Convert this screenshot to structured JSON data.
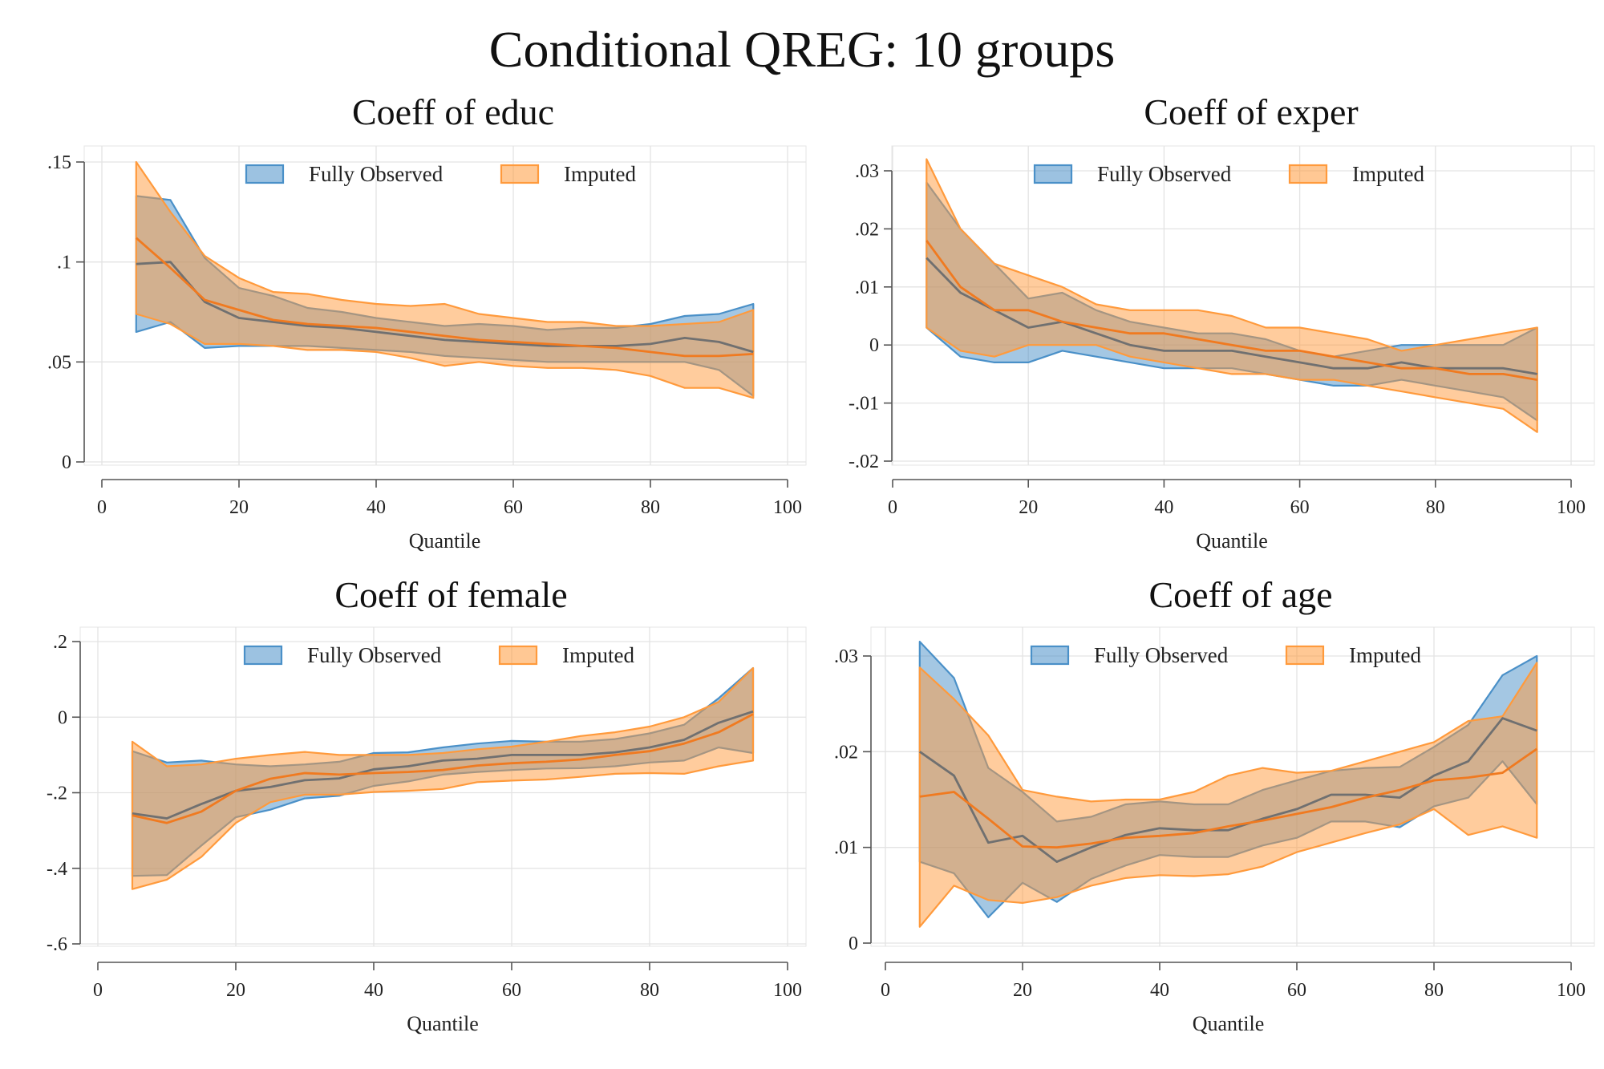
{
  "title": "Conditional QREG: 10 groups",
  "colors": {
    "observed": "#4a90c8",
    "imputed": "#ff9a3c",
    "observed_line": "#707070",
    "imputed_line": "#f07a20"
  },
  "chart_data": [
    {
      "type": "area",
      "title": "Coeff of educ",
      "xlabel": "Quantile",
      "xlim": [
        0,
        100
      ],
      "ylim": [
        0,
        0.15
      ],
      "xticks": [
        0,
        20,
        40,
        60,
        80,
        100
      ],
      "xtick_labels": [
        "0",
        "20",
        "40",
        "60",
        "80",
        "100"
      ],
      "yticks": [
        0,
        0.05,
        0.1,
        0.15
      ],
      "ytick_labels": [
        "0",
        ".05",
        ".1",
        ".15"
      ],
      "legend": [
        "Fully Observed",
        "Imputed"
      ],
      "legend_position": "top-center",
      "grid": true,
      "x": [
        5,
        10,
        15,
        20,
        25,
        30,
        35,
        40,
        45,
        50,
        55,
        60,
        65,
        70,
        75,
        80,
        85,
        90,
        95
      ],
      "series": [
        {
          "name": "Fully Observed",
          "estimate": [
            0.099,
            0.1,
            0.08,
            0.072,
            0.07,
            0.068,
            0.067,
            0.065,
            0.063,
            0.061,
            0.06,
            0.059,
            0.058,
            0.058,
            0.058,
            0.059,
            0.062,
            0.06,
            0.055
          ],
          "upper": [
            0.133,
            0.131,
            0.102,
            0.087,
            0.083,
            0.077,
            0.075,
            0.072,
            0.07,
            0.068,
            0.069,
            0.068,
            0.066,
            0.067,
            0.067,
            0.069,
            0.073,
            0.074,
            0.079
          ],
          "lower": [
            0.065,
            0.07,
            0.057,
            0.058,
            0.058,
            0.058,
            0.057,
            0.056,
            0.055,
            0.053,
            0.052,
            0.051,
            0.05,
            0.05,
            0.05,
            0.05,
            0.05,
            0.046,
            0.033
          ]
        },
        {
          "name": "Imputed",
          "estimate": [
            0.112,
            0.097,
            0.081,
            0.076,
            0.071,
            0.069,
            0.068,
            0.067,
            0.065,
            0.063,
            0.061,
            0.06,
            0.059,
            0.058,
            0.057,
            0.055,
            0.053,
            0.053,
            0.054
          ],
          "upper": [
            0.15,
            0.125,
            0.103,
            0.092,
            0.085,
            0.084,
            0.081,
            0.079,
            0.078,
            0.079,
            0.074,
            0.072,
            0.07,
            0.07,
            0.068,
            0.068,
            0.069,
            0.07,
            0.076
          ],
          "lower": [
            0.074,
            0.069,
            0.059,
            0.059,
            0.058,
            0.056,
            0.056,
            0.055,
            0.052,
            0.048,
            0.05,
            0.048,
            0.047,
            0.047,
            0.046,
            0.043,
            0.037,
            0.037,
            0.032
          ]
        }
      ]
    },
    {
      "type": "area",
      "title": "Coeff of exper",
      "xlabel": "Quantile",
      "xlim": [
        0,
        100
      ],
      "ylim": [
        -0.02,
        0.03
      ],
      "xticks": [
        0,
        20,
        40,
        60,
        80,
        100
      ],
      "xtick_labels": [
        "0",
        "20",
        "40",
        "60",
        "80",
        "100"
      ],
      "yticks": [
        -0.02,
        -0.01,
        0,
        0.01,
        0.02,
        0.03
      ],
      "ytick_labels": [
        "-.02",
        "-.01",
        "0",
        ".01",
        ".02",
        ".03"
      ],
      "legend": [
        "Fully Observed",
        "Imputed"
      ],
      "legend_position": "top-center",
      "grid": true,
      "x": [
        5,
        10,
        15,
        20,
        25,
        30,
        35,
        40,
        45,
        50,
        55,
        60,
        65,
        70,
        75,
        80,
        85,
        90,
        95
      ],
      "series": [
        {
          "name": "Fully Observed",
          "estimate": [
            0.015,
            0.009,
            0.006,
            0.003,
            0.004,
            0.002,
            0.0,
            -0.001,
            -0.001,
            -0.001,
            -0.002,
            -0.003,
            -0.004,
            -0.004,
            -0.003,
            -0.004,
            -0.004,
            -0.004,
            -0.005
          ],
          "upper": [
            0.028,
            0.02,
            0.014,
            0.008,
            0.009,
            0.006,
            0.004,
            0.003,
            0.002,
            0.002,
            0.001,
            -0.001,
            -0.002,
            -0.001,
            0.0,
            0.0,
            0.0,
            0.0,
            0.003
          ],
          "lower": [
            0.003,
            -0.002,
            -0.003,
            -0.003,
            -0.001,
            -0.002,
            -0.003,
            -0.004,
            -0.004,
            -0.004,
            -0.005,
            -0.006,
            -0.007,
            -0.007,
            -0.006,
            -0.007,
            -0.008,
            -0.009,
            -0.013
          ]
        },
        {
          "name": "Imputed",
          "estimate": [
            0.018,
            0.01,
            0.006,
            0.006,
            0.004,
            0.003,
            0.002,
            0.002,
            0.001,
            0.0,
            -0.001,
            -0.001,
            -0.002,
            -0.003,
            -0.004,
            -0.004,
            -0.005,
            -0.005,
            -0.006
          ],
          "upper": [
            0.032,
            0.02,
            0.014,
            0.012,
            0.01,
            0.007,
            0.006,
            0.006,
            0.006,
            0.005,
            0.003,
            0.003,
            0.002,
            0.001,
            -0.001,
            0.0,
            0.001,
            0.002,
            0.003
          ],
          "lower": [
            0.003,
            -0.001,
            -0.002,
            0.0,
            0.0,
            0.0,
            -0.002,
            -0.003,
            -0.004,
            -0.005,
            -0.005,
            -0.006,
            -0.006,
            -0.007,
            -0.008,
            -0.009,
            -0.01,
            -0.011,
            -0.015
          ]
        }
      ]
    },
    {
      "type": "area",
      "title": "Coeff of female",
      "xlabel": "Quantile",
      "xlim": [
        0,
        100
      ],
      "ylim": [
        -0.6,
        0.2
      ],
      "xticks": [
        0,
        20,
        40,
        60,
        80,
        100
      ],
      "xtick_labels": [
        "0",
        "20",
        "40",
        "60",
        "80",
        "100"
      ],
      "yticks": [
        -0.6,
        -0.4,
        -0.2,
        0,
        0.2
      ],
      "ytick_labels": [
        "-.6",
        "-.4",
        "-.2",
        "0",
        ".2"
      ],
      "legend": [
        "Fully Observed",
        "Imputed"
      ],
      "legend_position": "top-center",
      "grid": true,
      "x": [
        5,
        10,
        15,
        20,
        25,
        30,
        35,
        40,
        45,
        50,
        55,
        60,
        65,
        70,
        75,
        80,
        85,
        90,
        95
      ],
      "series": [
        {
          "name": "Fully Observed",
          "estimate": [
            -0.255,
            -0.268,
            -0.23,
            -0.195,
            -0.185,
            -0.167,
            -0.162,
            -0.138,
            -0.13,
            -0.115,
            -0.11,
            -0.1,
            -0.1,
            -0.1,
            -0.093,
            -0.08,
            -0.06,
            -0.015,
            0.015
          ],
          "upper": [
            -0.09,
            -0.12,
            -0.115,
            -0.125,
            -0.13,
            -0.125,
            -0.118,
            -0.095,
            -0.093,
            -0.08,
            -0.07,
            -0.063,
            -0.065,
            -0.065,
            -0.058,
            -0.043,
            -0.02,
            0.05,
            0.13
          ],
          "lower": [
            -0.42,
            -0.418,
            -0.34,
            -0.265,
            -0.245,
            -0.215,
            -0.208,
            -0.182,
            -0.17,
            -0.152,
            -0.145,
            -0.14,
            -0.136,
            -0.135,
            -0.13,
            -0.12,
            -0.115,
            -0.08,
            -0.095
          ]
        },
        {
          "name": "Imputed",
          "estimate": [
            -0.26,
            -0.28,
            -0.25,
            -0.195,
            -0.163,
            -0.148,
            -0.152,
            -0.148,
            -0.145,
            -0.14,
            -0.128,
            -0.122,
            -0.118,
            -0.112,
            -0.1,
            -0.09,
            -0.07,
            -0.04,
            0.008
          ],
          "upper": [
            -0.065,
            -0.13,
            -0.125,
            -0.11,
            -0.1,
            -0.092,
            -0.1,
            -0.1,
            -0.1,
            -0.095,
            -0.085,
            -0.078,
            -0.065,
            -0.05,
            -0.04,
            -0.025,
            0.0,
            0.04,
            0.13
          ],
          "lower": [
            -0.455,
            -0.43,
            -0.37,
            -0.28,
            -0.225,
            -0.205,
            -0.205,
            -0.198,
            -0.195,
            -0.19,
            -0.172,
            -0.168,
            -0.165,
            -0.158,
            -0.15,
            -0.148,
            -0.15,
            -0.13,
            -0.115
          ]
        }
      ]
    },
    {
      "type": "area",
      "title": "Coeff of age",
      "xlabel": "Quantile",
      "xlim": [
        0,
        100
      ],
      "ylim": [
        0,
        0.03
      ],
      "xticks": [
        0,
        20,
        40,
        60,
        80,
        100
      ],
      "xtick_labels": [
        "0",
        "20",
        "40",
        "60",
        "80",
        "100"
      ],
      "yticks": [
        0,
        0.01,
        0.02,
        0.03
      ],
      "ytick_labels": [
        "0",
        ".01",
        ".02",
        ".03"
      ],
      "legend": [
        "Fully Observed",
        "Imputed"
      ],
      "legend_position": "top-center",
      "grid": true,
      "x": [
        5,
        10,
        15,
        20,
        25,
        30,
        35,
        40,
        45,
        50,
        55,
        60,
        65,
        70,
        75,
        80,
        85,
        90,
        95
      ],
      "series": [
        {
          "name": "Fully Observed",
          "estimate": [
            0.02,
            0.0175,
            0.0105,
            0.0112,
            0.0085,
            0.01,
            0.0113,
            0.012,
            0.0118,
            0.0118,
            0.013,
            0.014,
            0.0155,
            0.0155,
            0.0152,
            0.0175,
            0.019,
            0.0235,
            0.0222
          ],
          "upper": [
            0.0315,
            0.0277,
            0.0183,
            0.0158,
            0.0127,
            0.0132,
            0.0145,
            0.0148,
            0.0145,
            0.0145,
            0.016,
            0.017,
            0.018,
            0.0183,
            0.0184,
            0.0205,
            0.0228,
            0.028,
            0.03
          ],
          "lower": [
            0.0085,
            0.0073,
            0.0027,
            0.0063,
            0.0043,
            0.0067,
            0.0081,
            0.0092,
            0.009,
            0.009,
            0.0102,
            0.011,
            0.0127,
            0.0127,
            0.0121,
            0.0143,
            0.0152,
            0.019,
            0.0145
          ]
        },
        {
          "name": "Imputed",
          "estimate": [
            0.0153,
            0.0158,
            0.013,
            0.0101,
            0.01,
            0.0104,
            0.011,
            0.0112,
            0.0115,
            0.0122,
            0.0128,
            0.0135,
            0.0142,
            0.0152,
            0.016,
            0.017,
            0.0173,
            0.0178,
            0.0203
          ],
          "upper": [
            0.0288,
            0.0255,
            0.0217,
            0.016,
            0.0153,
            0.0148,
            0.015,
            0.015,
            0.0158,
            0.0175,
            0.0183,
            0.0178,
            0.018,
            0.019,
            0.02,
            0.021,
            0.0232,
            0.0237,
            0.0293
          ],
          "lower": [
            0.0017,
            0.006,
            0.0045,
            0.0042,
            0.0048,
            0.006,
            0.0068,
            0.0071,
            0.007,
            0.0072,
            0.008,
            0.0095,
            0.0105,
            0.0115,
            0.0124,
            0.014,
            0.0113,
            0.0122,
            0.011
          ]
        }
      ]
    }
  ]
}
